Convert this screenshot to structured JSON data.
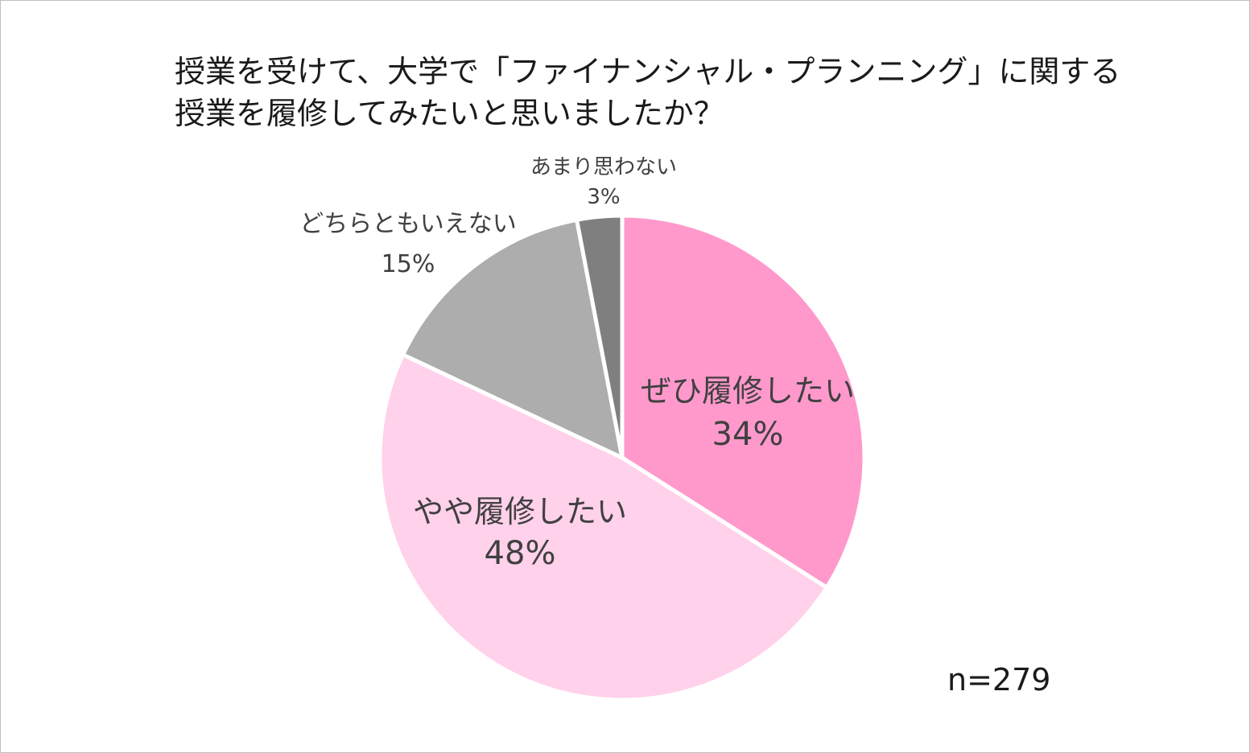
{
  "chart_data": {
    "type": "pie",
    "title_lines": [
      "授業を受けて、大学で「ファイナンシャル・プランニング」に関する",
      "授業を履修してみたいと思いましたか？"
    ],
    "slices": [
      {
        "label": "ぜひ履修したい",
        "value": 34,
        "value_label": "34%",
        "color": "#ff99cc"
      },
      {
        "label": "やや履修したい",
        "value": 48,
        "value_label": "48%",
        "color": "#ffd1ea"
      },
      {
        "label": "どちらともいえない",
        "value": 15,
        "value_label": "15%",
        "color": "#adadad"
      },
      {
        "label": "あまり思わない",
        "value": 3,
        "value_label": "3%",
        "color": "#7f7f7f"
      }
    ],
    "start": "12 o'clock, clockwise",
    "label_placement": [
      "inside",
      "inside",
      "outside",
      "outside"
    ],
    "note": "n=279"
  }
}
